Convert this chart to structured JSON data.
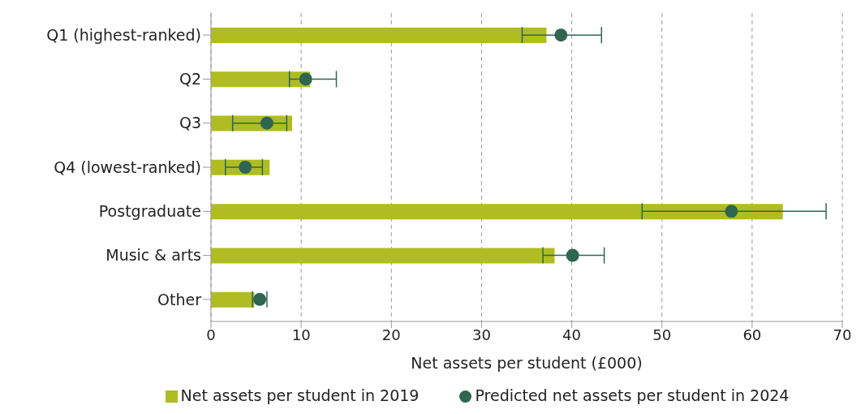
{
  "chart_data": {
    "type": "bar",
    "orientation": "horizontal",
    "categories": [
      "Q1 (highest-ranked)",
      "Q2",
      "Q3",
      "Q4 (lowest-ranked)",
      "Postgraduate",
      "Music & arts",
      "Other"
    ],
    "series": [
      {
        "name": "Net assets per student in 2019",
        "color": "#afbd22",
        "values": [
          37.2,
          11.0,
          9.0,
          6.5,
          63.4,
          38.1,
          4.8
        ]
      },
      {
        "type": "scatter",
        "name": "Predicted net assets per student in 2024",
        "color": "#2e6650",
        "values": [
          38.8,
          10.5,
          6.2,
          3.8,
          57.7,
          40.1,
          5.4
        ],
        "errors": [
          [
            34.5,
            43.3
          ],
          [
            8.7,
            13.9
          ],
          [
            2.4,
            8.4
          ],
          [
            1.6,
            5.7
          ],
          [
            47.8,
            68.2
          ],
          [
            36.8,
            43.6
          ],
          [
            4.6,
            6.2
          ]
        ]
      }
    ],
    "xlabel": "Net assets per student (£000)",
    "xlim": [
      0,
      70
    ],
    "xticks": [
      0,
      10,
      20,
      30,
      40,
      50,
      60,
      70
    ],
    "grid": "x",
    "legend": "bottom",
    "marker": "circle"
  }
}
